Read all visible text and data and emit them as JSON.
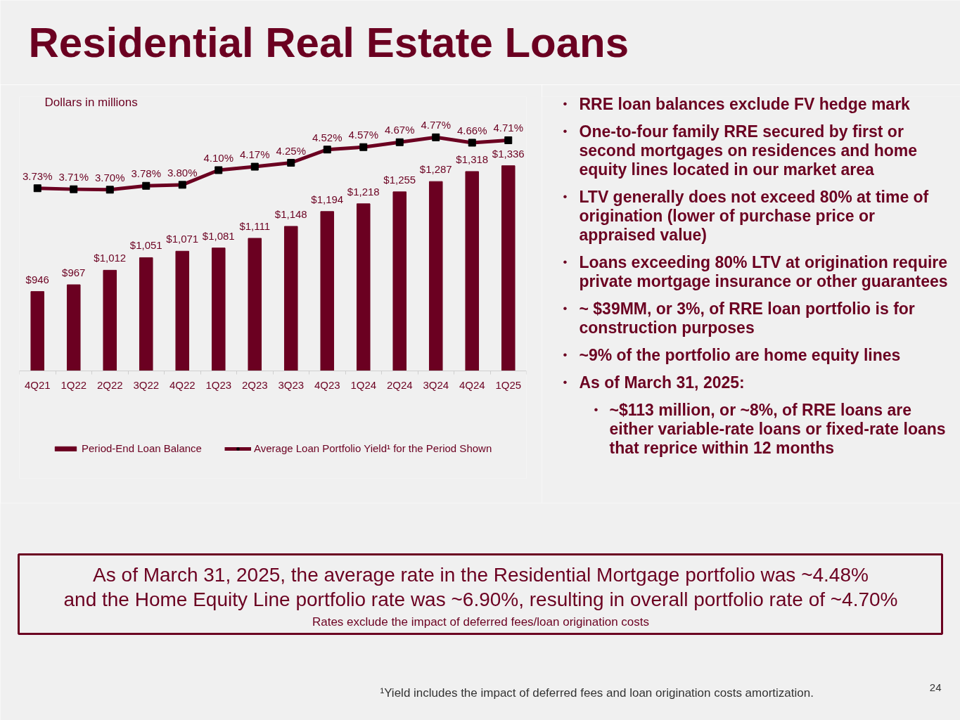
{
  "chart_data": {
    "type": "bar",
    "title": "Residential Real Estate Loans",
    "subtitle": "Dollars in millions",
    "categories": [
      "4Q21",
      "1Q22",
      "2Q22",
      "3Q22",
      "4Q22",
      "1Q23",
      "2Q23",
      "3Q23",
      "4Q23",
      "1Q24",
      "2Q24",
      "3Q24",
      "4Q24",
      "1Q25"
    ],
    "series": [
      {
        "name": "Period-End Loan Balance",
        "color": "#6b0021",
        "values": [
          946,
          967,
          1012,
          1051,
          1071,
          1081,
          1111,
          1148,
          1194,
          1218,
          1255,
          1287,
          1318,
          1336
        ],
        "value_labels": [
          "$946",
          "$967",
          "$1,012",
          "$1,051",
          "$1,071",
          "$1,081",
          "$1,111",
          "$1,148",
          "$1,194",
          "$1,218",
          "$1,255",
          "$1,287",
          "$1,318",
          "$1,336"
        ]
      },
      {
        "name": "Average Loan Portfolio Yield¹ for the Period Shown",
        "type": "line",
        "axis": "y2",
        "color": "#6b0021",
        "values": [
          3.73,
          3.71,
          3.7,
          3.78,
          3.8,
          4.1,
          4.17,
          4.25,
          4.52,
          4.57,
          4.67,
          4.77,
          4.66,
          4.71
        ],
        "value_labels": [
          "3.73%",
          "3.71%",
          "3.70%",
          "3.78%",
          "3.80%",
          "4.10%",
          "4.17%",
          "4.25%",
          "4.52%",
          "4.57%",
          "4.67%",
          "4.77%",
          "4.66%",
          "4.71%"
        ]
      }
    ],
    "ylim": [
      700,
      1550
    ],
    "y2lim": [
      0,
      5.6
    ],
    "tick_labels": "x",
    "legend": "bottom",
    "marker": "square",
    "line_style": "solid",
    "annotations": [
      "• RRE loan balances exclude FV hedge mark",
      "• One-to-four family RRE secured by first or second mortgages on residences and home equity lines located in our market area",
      "• LTV generally does not exceed 80% at time of origination (lower of purchase price or appraised value)",
      "• Loans exceeding 80% LTV at origination require private mortgage insurance or other guarantees",
      "• ~ $39MM, or 3%, of RRE loan portfolio is for construction purposes",
      "• ~9% of the portfolio are home equity lines",
      "• As of March 31, 2025:",
      "• ~$113 million, or ~8%, of RRE loans are either variable-rate loans or fixed-rate loans that reprice within 12 months",
      "As of March 31, 2025, the average rate in the Residential Mortgage portfolio was ~4.48%",
      "and the Home Equity Line portfolio rate was ~6.90%, resulting in overall portfolio rate of ~4.70%",
      "Rates exclude the impact of deferred fees/loan origination costs",
      "¹Yield includes the impact of deferred fees and loan origination costs amortization.",
      "24"
    ]
  }
}
